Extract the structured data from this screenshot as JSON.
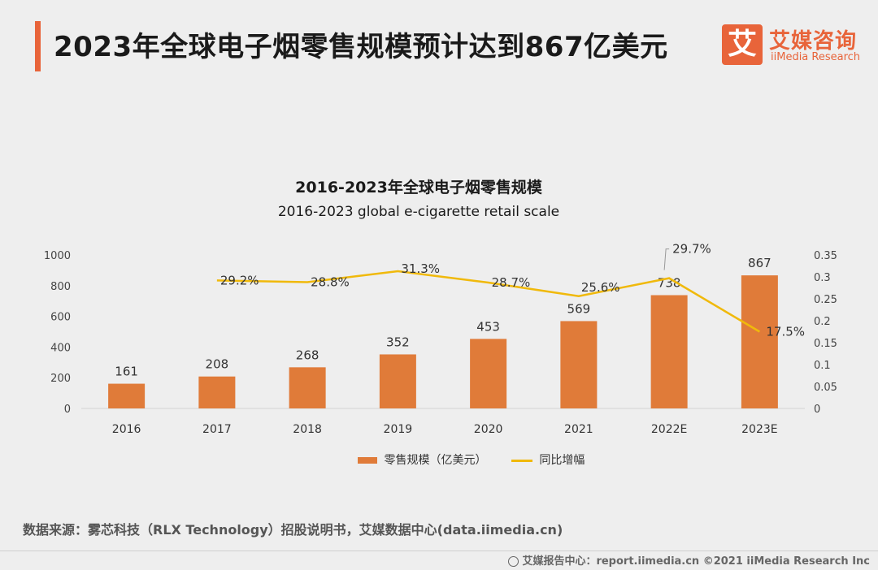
{
  "header": {
    "title": "2023年全球电子烟零售规模预计达到867亿美元",
    "logo_mark": "艾",
    "logo_cn": "艾媒咨询",
    "logo_en": "iiMedia Research"
  },
  "chart_data": {
    "type": "bar+line",
    "title": "2016-2023年全球电子烟零售规模",
    "subtitle": "2016-2023 global e-cigarette retail scale",
    "categories": [
      "2016",
      "2017",
      "2018",
      "2019",
      "2020",
      "2021",
      "2022E",
      "2023E"
    ],
    "series": [
      {
        "name": "零售规模（亿美元）",
        "type": "bar",
        "axis": "left",
        "color": "#e07b39",
        "values": [
          161,
          208,
          268,
          352,
          453,
          569,
          738,
          867
        ],
        "labels": [
          "161",
          "208",
          "268",
          "352",
          "453",
          "569",
          "738",
          "867"
        ]
      },
      {
        "name": "同比增幅",
        "type": "line",
        "axis": "right",
        "color": "#f0b90b",
        "values": [
          null,
          0.292,
          0.288,
          0.313,
          0.287,
          0.256,
          0.297,
          0.175
        ],
        "labels": [
          "",
          "29.2%",
          "28.8%",
          "31.3%",
          "28.7%",
          "25.6%",
          "29.7%",
          "17.5%"
        ]
      }
    ],
    "y_left": {
      "min": 0,
      "max": 1000,
      "ticks": [
        "0",
        "200",
        "400",
        "600",
        "800",
        "1000"
      ]
    },
    "y_right": {
      "min": 0,
      "max": 0.35,
      "ticks": [
        "0",
        "0.05",
        "0.1",
        "0.15",
        "0.2",
        "0.25",
        "0.3",
        "0.35"
      ]
    },
    "grid": false,
    "legend_position": "bottom"
  },
  "legend": {
    "bar_label": "零售规模（亿美元）",
    "line_label": "同比增幅"
  },
  "source": "数据来源：雾芯科技（RLX Technology）招股说明书，艾媒数据中心(data.iimedia.cn)",
  "footer": "艾媒报告中心：report.iimedia.cn ©2021 iiMedia Research Inc"
}
